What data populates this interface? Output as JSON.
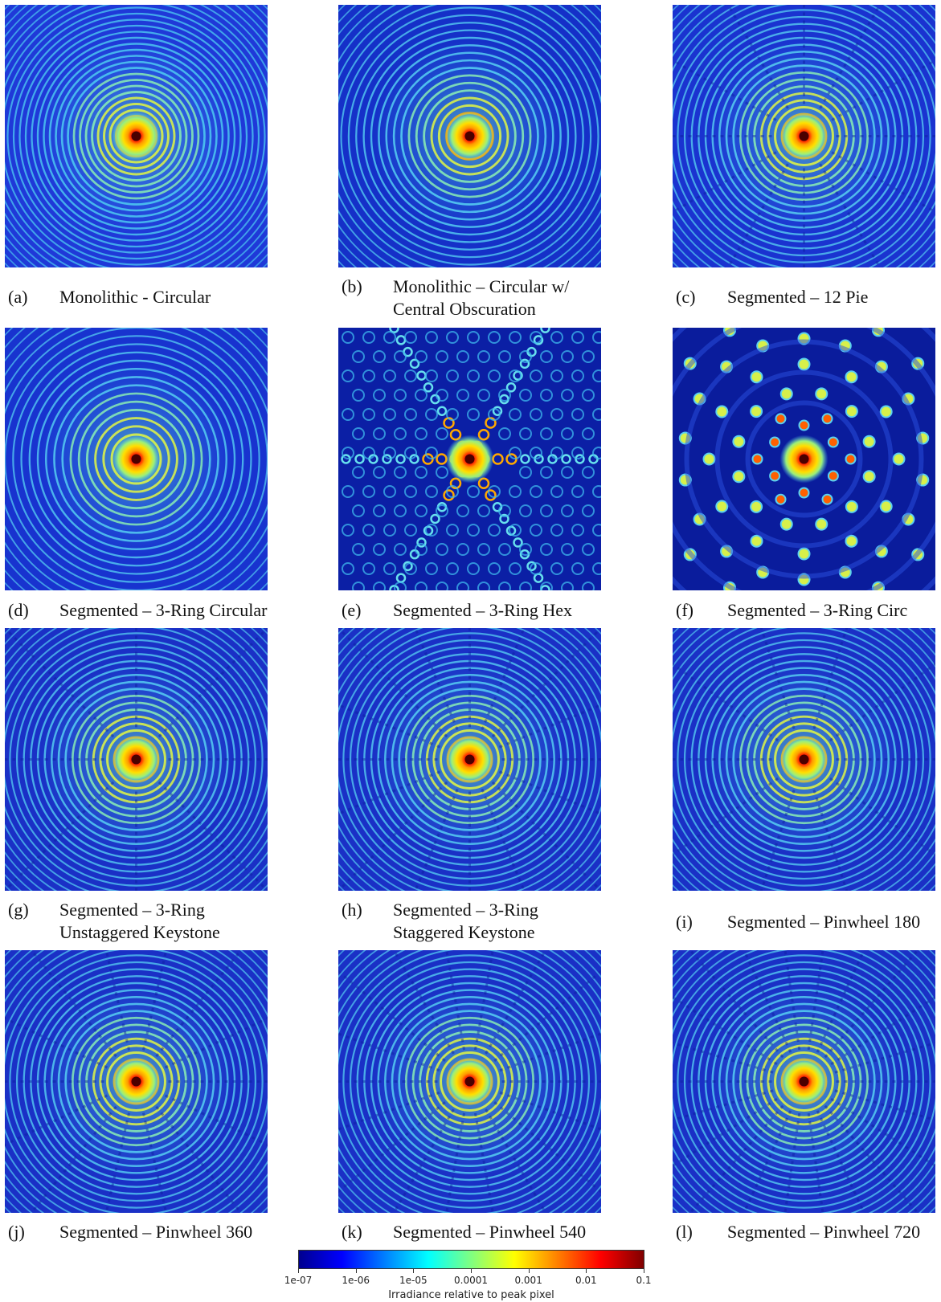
{
  "panels": [
    {
      "letter": "(a)",
      "line1": "Monolithic - Circular",
      "line2": "",
      "pattern": "rings",
      "bg": "#1f39d8",
      "ring": "#4fd0f2",
      "ringCount": 30,
      "spokes": 0
    },
    {
      "letter": "(b)",
      "line1": "Monolithic – Circular w/",
      "line2": "Central Obscuration",
      "pattern": "rings",
      "bg": "#1530c8",
      "ring": "#59d6f4",
      "ringCount": 24,
      "spokes": 0
    },
    {
      "letter": "(c)",
      "line1": "Segmented – 12 Pie",
      "line2": "",
      "pattern": "rings-spokes",
      "bg": "#1a33d0",
      "ring": "#5ad4f2",
      "ringCount": 26,
      "spokes": 12
    },
    {
      "letter": "(d)",
      "line1": "Segmented – 3-Ring Circular",
      "line2": "",
      "pattern": "rings",
      "bg": "#1833cf",
      "ring": "#58d3f3",
      "ringCount": 22,
      "spokes": 0
    },
    {
      "letter": "(e)",
      "line1": "Segmented – 3-Ring Hex",
      "line2": "",
      "pattern": "hex",
      "bg": "#0b1fa5",
      "ring": "#67e0ee",
      "ringCount": 0,
      "spokes": 6
    },
    {
      "letter": "(f)",
      "line1": "Segmented – 3-Ring Circ",
      "line2": "",
      "pattern": "dots",
      "bg": "#0a1c9c",
      "ring": "#4fc6f2",
      "ringCount": 0,
      "spokes": 12
    },
    {
      "letter": "(g)",
      "line1": "Segmented – 3-Ring",
      "line2": "Unstaggered Keystone",
      "pattern": "rings-spokes",
      "bg": "#1a30c6",
      "ring": "#58d3f3",
      "ringCount": 26,
      "spokes": 8
    },
    {
      "letter": "(h)",
      "line1": "Segmented – 3-Ring",
      "line2": "Staggered Keystone",
      "pattern": "rings-spokes",
      "bg": "#1a30c6",
      "ring": "#58d3f3",
      "ringCount": 26,
      "spokes": 16
    },
    {
      "letter": "(i)",
      "line1": "Segmented – Pinwheel 180",
      "line2": "",
      "pattern": "rings-spokes",
      "bg": "#1a30c6",
      "ring": "#58d3f3",
      "ringCount": 26,
      "spokes": 10
    },
    {
      "letter": "(j)",
      "line1": "Segmented – Pinwheel 360",
      "line2": "",
      "pattern": "rings-spokes",
      "bg": "#1a30c6",
      "ring": "#58d3f3",
      "ringCount": 26,
      "spokes": 14
    },
    {
      "letter": "(k)",
      "line1": "Segmented – Pinwheel 540",
      "line2": "",
      "pattern": "rings-spokes",
      "bg": "#1a30c6",
      "ring": "#58d3f3",
      "ringCount": 26,
      "spokes": 18
    },
    {
      "letter": "(l)",
      "line1": "Segmented – Pinwheel 720",
      "line2": "",
      "pattern": "rings-spokes",
      "bg": "#1a30c6",
      "ring": "#58d3f3",
      "ringCount": 26,
      "spokes": 22
    }
  ],
  "colorbar": {
    "ticks": [
      "1e-07",
      "1e-06",
      "1e-05",
      "0.0001",
      "0.001",
      "0.01",
      "0.1"
    ],
    "label": "Irradiance relative to peak pixel",
    "colors": [
      "#00008f",
      "#0000ff",
      "#0080ff",
      "#00ffff",
      "#80ff80",
      "#ffff00",
      "#ff8000",
      "#ff0000",
      "#800000"
    ]
  }
}
